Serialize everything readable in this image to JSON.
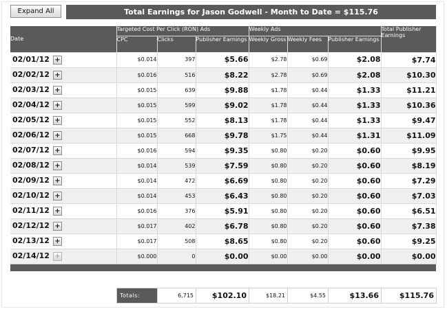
{
  "toolbar": {
    "expand_all_label": "Expand All"
  },
  "title": "Total Earnings for Jason Godwell - Month to Date = $115.76",
  "headers": {
    "date": "Date",
    "targeted_group": "Targeted Cost Per Click (RON) Ads",
    "weekly_group": "Weekly Ads",
    "total": "Total Publisher Earnings",
    "cpc": "CPC",
    "clicks": "Clicks",
    "publisher_earnings": "Publisher Earnings",
    "weekly_gross": "Weekly Gross",
    "weekly_fees": "Weekly Fees",
    "weekly_publisher_earnings": "Publisher Earnings"
  },
  "rows": [
    {
      "date": "02/01/12",
      "cpc": "$0.014",
      "clicks": "397",
      "pub": "$5.66",
      "wgross": "$2.78",
      "wfees": "$0.69",
      "wpub": "$2.08",
      "total": "$7.74",
      "expand_enabled": true
    },
    {
      "date": "02/02/12",
      "cpc": "$0.016",
      "clicks": "516",
      "pub": "$8.22",
      "wgross": "$2.78",
      "wfees": "$0.69",
      "wpub": "$2.08",
      "total": "$10.30",
      "expand_enabled": true
    },
    {
      "date": "02/03/12",
      "cpc": "$0.015",
      "clicks": "639",
      "pub": "$9.88",
      "wgross": "$1.78",
      "wfees": "$0.44",
      "wpub": "$1.33",
      "total": "$11.21",
      "expand_enabled": true
    },
    {
      "date": "02/04/12",
      "cpc": "$0.015",
      "clicks": "599",
      "pub": "$9.02",
      "wgross": "$1.78",
      "wfees": "$0.44",
      "wpub": "$1.33",
      "total": "$10.36",
      "expand_enabled": true
    },
    {
      "date": "02/05/12",
      "cpc": "$0.015",
      "clicks": "552",
      "pub": "$8.13",
      "wgross": "$1.78",
      "wfees": "$0.44",
      "wpub": "$1.33",
      "total": "$9.47",
      "expand_enabled": true
    },
    {
      "date": "02/06/12",
      "cpc": "$0.015",
      "clicks": "668",
      "pub": "$9.78",
      "wgross": "$1.75",
      "wfees": "$0.44",
      "wpub": "$1.31",
      "total": "$11.09",
      "expand_enabled": true
    },
    {
      "date": "02/07/12",
      "cpc": "$0.016",
      "clicks": "594",
      "pub": "$9.35",
      "wgross": "$0.80",
      "wfees": "$0.20",
      "wpub": "$0.60",
      "total": "$9.95",
      "expand_enabled": true
    },
    {
      "date": "02/08/12",
      "cpc": "$0.014",
      "clicks": "539",
      "pub": "$7.59",
      "wgross": "$0.80",
      "wfees": "$0.20",
      "wpub": "$0.60",
      "total": "$8.19",
      "expand_enabled": true
    },
    {
      "date": "02/09/12",
      "cpc": "$0.014",
      "clicks": "472",
      "pub": "$6.69",
      "wgross": "$0.80",
      "wfees": "$0.20",
      "wpub": "$0.60",
      "total": "$7.29",
      "expand_enabled": true
    },
    {
      "date": "02/10/12",
      "cpc": "$0.014",
      "clicks": "453",
      "pub": "$6.43",
      "wgross": "$0.80",
      "wfees": "$0.20",
      "wpub": "$0.60",
      "total": "$7.03",
      "expand_enabled": true
    },
    {
      "date": "02/11/12",
      "cpc": "$0.016",
      "clicks": "376",
      "pub": "$5.91",
      "wgross": "$0.80",
      "wfees": "$0.20",
      "wpub": "$0.60",
      "total": "$6.51",
      "expand_enabled": true
    },
    {
      "date": "02/12/12",
      "cpc": "$0.017",
      "clicks": "402",
      "pub": "$6.78",
      "wgross": "$0.80",
      "wfees": "$0.20",
      "wpub": "$0.60",
      "total": "$7.38",
      "expand_enabled": true
    },
    {
      "date": "02/13/12",
      "cpc": "$0.017",
      "clicks": "508",
      "pub": "$8.65",
      "wgross": "$0.80",
      "wfees": "$0.20",
      "wpub": "$0.60",
      "total": "$9.25",
      "expand_enabled": true
    },
    {
      "date": "02/14/12",
      "cpc": "$0.000",
      "clicks": "0",
      "pub": "$0.00",
      "wgross": "$0.00",
      "wfees": "$0.00",
      "wpub": "$0.00",
      "total": "$0.00",
      "expand_enabled": false
    }
  ],
  "expand_row_label": "+",
  "totals": {
    "label": "Totals:",
    "clicks": "6,715",
    "pub": "$102.10",
    "wgross": "$18.21",
    "wfees": "$4.55",
    "wpub": "$13.66",
    "total": "$115.76"
  },
  "colors": {
    "header_bg": "#5a5a5a",
    "alt_row_bg": "#efefef",
    "header_text": "#ffffff"
  }
}
